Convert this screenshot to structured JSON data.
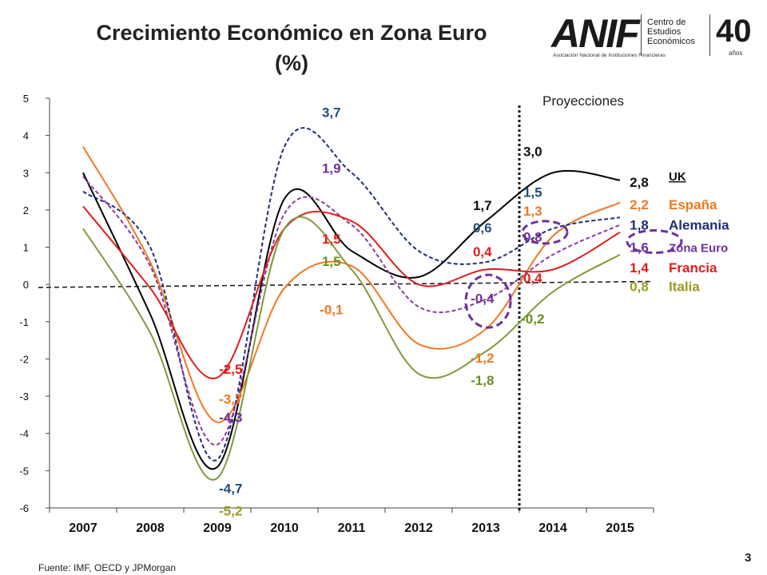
{
  "chart_data": {
    "type": "line",
    "title": "Crecimiento Económico en Zona Euro",
    "subtitle": "(%)",
    "x": [
      2007,
      2008,
      2009,
      2010,
      2011,
      2012,
      2013,
      2014,
      2015
    ],
    "ylim": [
      -6,
      5
    ],
    "yticks": [
      "5",
      "4",
      "3",
      "2",
      "1",
      "0",
      "-1",
      "-2",
      "-3",
      "-4",
      "-5",
      "-6"
    ],
    "grid": false,
    "projection_label": "Proyecciones",
    "projection_start": 2013.5,
    "series": [
      {
        "name": "UK",
        "color": "#000000",
        "dashed": false,
        "values": [
          3.0,
          -0.8,
          -4.9,
          2.3,
          0.9,
          0.2,
          1.7,
          3.0,
          2.8
        ]
      },
      {
        "name": "España",
        "color": "#F07820",
        "dashed": false,
        "values": [
          3.7,
          0.6,
          -3.7,
          -0.1,
          0.5,
          -1.6,
          -1.2,
          1.3,
          2.2
        ]
      },
      {
        "name": "Alemania",
        "color": "#1F2C7A",
        "dashed": true,
        "values": [
          2.5,
          1.0,
          -4.7,
          3.7,
          3.0,
          0.9,
          0.6,
          1.5,
          1.8
        ]
      },
      {
        "name": "Zona Euro",
        "color": "#8B3A9E",
        "dashed": true,
        "values": [
          2.9,
          0.5,
          -4.3,
          1.9,
          1.6,
          -0.6,
          -0.4,
          0.8,
          1.6
        ]
      },
      {
        "name": "Francia",
        "color": "#E01C1C",
        "dashed": false,
        "values": [
          2.1,
          -0.1,
          -2.5,
          1.5,
          1.7,
          0.0,
          0.4,
          0.4,
          1.4
        ]
      },
      {
        "name": "Italia",
        "color": "#7F9A3A",
        "dashed": false,
        "values": [
          1.5,
          -1.3,
          -5.2,
          1.5,
          0.4,
          -2.4,
          -1.8,
          -0.2,
          0.8
        ]
      }
    ],
    "data_labels": [
      {
        "text": "3,7",
        "x": 2010.7,
        "y": 4.5,
        "color": "#1F4E79"
      },
      {
        "text": "1,9",
        "x": 2010.7,
        "y": 3.0,
        "color": "#7030A0"
      },
      {
        "text": "1,5",
        "x": 2010.7,
        "y": 1.1,
        "color": "#E01C1C"
      },
      {
        "text": "1,5",
        "x": 2010.7,
        "y": 0.5,
        "color": "#6B8E23"
      },
      {
        "text": "-0,1",
        "x": 2010.7,
        "y": -0.8,
        "color": "#F07820"
      },
      {
        "text": "-2,5",
        "x": 2009.2,
        "y": -2.4,
        "color": "#E01C1C"
      },
      {
        "text": "-3,7",
        "x": 2009.2,
        "y": -3.2,
        "color": "#F07820"
      },
      {
        "text": "-4,3",
        "x": 2009.2,
        "y": -3.7,
        "color": "#7030A0"
      },
      {
        "text": "-4,7",
        "x": 2009.2,
        "y": -5.6,
        "color": "#1F4E79"
      },
      {
        "text": "-5,2",
        "x": 2009.2,
        "y": -6.2,
        "color": "#9A9A22"
      },
      {
        "text": "1,7",
        "x": 2012.95,
        "y": 2.0,
        "color": "#111111"
      },
      {
        "text": "0,6",
        "x": 2012.95,
        "y": 1.4,
        "color": "#1F4E79"
      },
      {
        "text": "0,4",
        "x": 2012.95,
        "y": 0.75,
        "color": "#E01C1C"
      },
      {
        "text": "-0,4",
        "x": 2012.95,
        "y": -0.5,
        "color": "#7030A0"
      },
      {
        "text": "-1,2",
        "x": 2012.95,
        "y": -2.1,
        "color": "#F07820"
      },
      {
        "text": "-1,8",
        "x": 2012.95,
        "y": -2.7,
        "color": "#6B8E23"
      },
      {
        "text": "3,0",
        "x": 2013.7,
        "y": 3.45,
        "color": "#111111"
      },
      {
        "text": "1,5",
        "x": 2013.7,
        "y": 2.35,
        "color": "#1F4E79"
      },
      {
        "text": "1,3",
        "x": 2013.7,
        "y": 1.85,
        "color": "#F07820"
      },
      {
        "text": "0,8",
        "x": 2013.7,
        "y": 1.15,
        "color": "#7030A0"
      },
      {
        "text": "0,4",
        "x": 2013.7,
        "y": 0.05,
        "color": "#E01C1C"
      },
      {
        "text": "-0,2",
        "x": 2013.7,
        "y": -1.05,
        "color": "#6B8E23"
      }
    ],
    "end_labels": [
      {
        "value": "2,8",
        "legend": "UK",
        "color": "#111111",
        "y": 2.75
      },
      {
        "value": "2,2",
        "legend": "España",
        "color": "#F07820",
        "y": 2.15
      },
      {
        "value": "1,8",
        "legend": "Alemania",
        "color": "#1F2C7A",
        "y": 1.6
      },
      {
        "value": "1,6",
        "legend": "Zona Euro",
        "color": "#7030A0",
        "y": 1.0
      },
      {
        "value": "1,4",
        "legend": "Francia",
        "color": "#E01C1C",
        "y": 0.45
      },
      {
        "value": "0,8",
        "legend": "Italia",
        "color": "#9A9A22",
        "y": -0.05
      }
    ]
  },
  "logo": {
    "brand": "ANIF",
    "brand_sub": "Asociación Nacional de Instituciones Financieras",
    "center_lines": [
      "Centro de",
      "Estudios",
      "Económicos"
    ],
    "anniversary": "40",
    "anniversary_sub": "años"
  },
  "footer": {
    "source": "Fuente: IMF, OECD y JPMorgan",
    "page_number": "3"
  },
  "colors": {
    "baseline": "#222222",
    "axis": "#444444",
    "circle": "#7030A0"
  }
}
